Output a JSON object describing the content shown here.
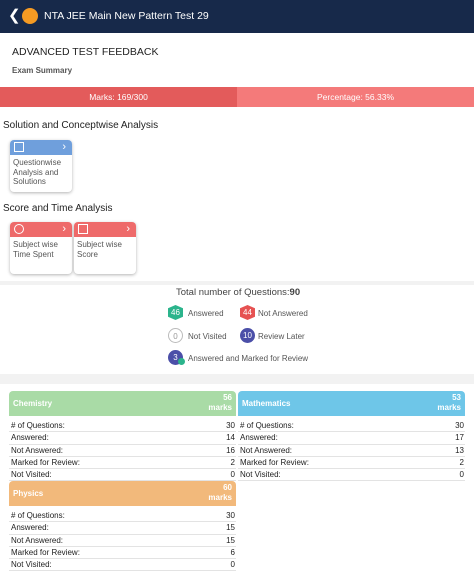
{
  "header": {
    "title": "NTA JEE Main New Pattern Test 29"
  },
  "feedback_title": "ADVANCED TEST FEEDBACK",
  "exam_summary": {
    "label": "Exam Summary",
    "marks": "Marks: 169/300",
    "percentage": "Percentage: 56.33%"
  },
  "solution_analysis": {
    "heading": "Solution and Conceptwise Analysis",
    "cards": [
      "Questionwise Analysis and Solutions"
    ]
  },
  "score_time_analysis": {
    "heading": "Score and Time Analysis",
    "cards": [
      "Subject wise Time Spent",
      "Subject wise Score"
    ]
  },
  "question_summary": {
    "label": "Total number of Questions:",
    "total": 90,
    "legend": [
      {
        "count": 46,
        "label": "Answered"
      },
      {
        "count": 44,
        "label": "Not Answered"
      },
      {
        "count": 0,
        "label": "Not Visited"
      },
      {
        "count": 10,
        "label": "Review Later"
      },
      {
        "count": 3,
        "label": "Answered and Marked for Review"
      }
    ]
  },
  "subjects": [
    {
      "name": "Chemistry",
      "marks": 56,
      "marks_unit": "marks",
      "rows": [
        {
          "label": "# of Questions:",
          "value": 30
        },
        {
          "label": "Answered:",
          "value": 14
        },
        {
          "label": "Not Answered:",
          "value": 16
        },
        {
          "label": "Marked for Review:",
          "value": 2
        },
        {
          "label": "Not Visited:",
          "value": 0
        }
      ]
    },
    {
      "name": "Mathematics",
      "marks": 53,
      "marks_unit": "marks",
      "rows": [
        {
          "label": "# of Questions:",
          "value": 30
        },
        {
          "label": "Answered:",
          "value": 17
        },
        {
          "label": "Not Answered:",
          "value": 13
        },
        {
          "label": "Marked for Review:",
          "value": 2
        },
        {
          "label": "Not Visited:",
          "value": 0
        }
      ]
    },
    {
      "name": "Physics",
      "marks": 60,
      "marks_unit": "marks",
      "rows": [
        {
          "label": "# of Questions:",
          "value": 30
        },
        {
          "label": "Answered:",
          "value": 15
        },
        {
          "label": "Not Answered:",
          "value": 15
        },
        {
          "label": "Marked for Review:",
          "value": 6
        },
        {
          "label": "Not Visited:",
          "value": 0
        }
      ]
    }
  ]
}
